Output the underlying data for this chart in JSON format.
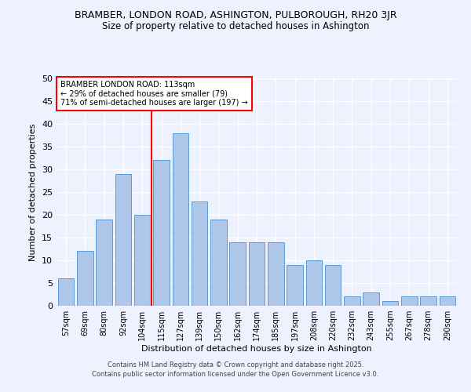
{
  "title1": "BRAMBER, LONDON ROAD, ASHINGTON, PULBOROUGH, RH20 3JR",
  "title2": "Size of property relative to detached houses in Ashington",
  "xlabel": "Distribution of detached houses by size in Ashington",
  "ylabel": "Number of detached properties",
  "categories": [
    "57sqm",
    "69sqm",
    "80sqm",
    "92sqm",
    "104sqm",
    "115sqm",
    "127sqm",
    "139sqm",
    "150sqm",
    "162sqm",
    "174sqm",
    "185sqm",
    "197sqm",
    "208sqm",
    "220sqm",
    "232sqm",
    "243sqm",
    "255sqm",
    "267sqm",
    "278sqm",
    "290sqm"
  ],
  "values": [
    6,
    12,
    19,
    29,
    20,
    32,
    38,
    23,
    19,
    14,
    14,
    14,
    9,
    10,
    9,
    2,
    3,
    1,
    2,
    2,
    2
  ],
  "bar_color": "#aec6e8",
  "bar_edge_color": "#5b9bd5",
  "vline_x": 4.5,
  "vline_color": "red",
  "annotation_title": "BRAMBER LONDON ROAD: 113sqm",
  "annotation_line1": "← 29% of detached houses are smaller (79)",
  "annotation_line2": "71% of semi-detached houses are larger (197) →",
  "annotation_box_color": "white",
  "annotation_box_edge": "red",
  "ylim": [
    0,
    50
  ],
  "yticks": [
    0,
    5,
    10,
    15,
    20,
    25,
    30,
    35,
    40,
    45,
    50
  ],
  "bg_color": "#eef2ff",
  "grid_color": "white",
  "footer1": "Contains HM Land Registry data © Crown copyright and database right 2025.",
  "footer2": "Contains public sector information licensed under the Open Government Licence v3.0."
}
